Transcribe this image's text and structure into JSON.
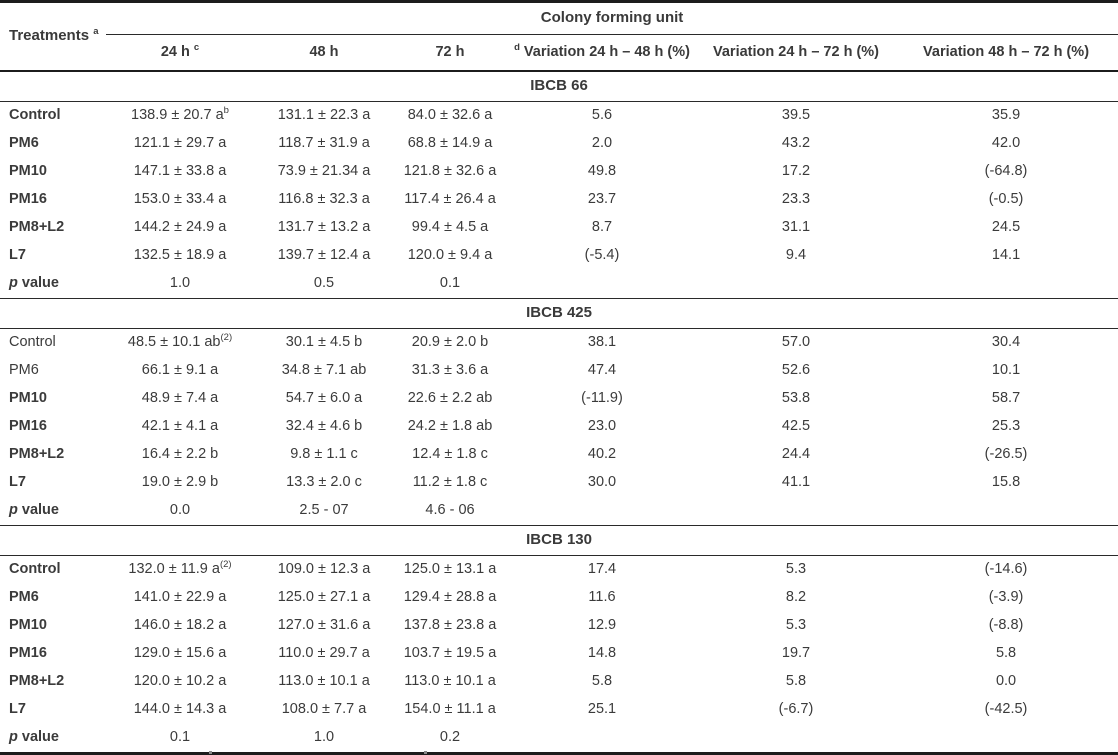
{
  "header": {
    "treatments": {
      "main": "Treatments",
      "sup": "a"
    },
    "group": "Colony forming unit",
    "cols": [
      {
        "pre": "",
        "main": "24 h",
        "sup": "c"
      },
      {
        "pre": "",
        "main": "48 h",
        "sup": ""
      },
      {
        "pre": "",
        "main": "72 h",
        "sup": ""
      },
      {
        "pre": "d",
        "main": "Variation 24 h – 48 h (%)",
        "sup": ""
      },
      {
        "pre": "",
        "main": "Variation 24 h – 72 h (%)",
        "sup": ""
      },
      {
        "pre": "",
        "main": "Variation 48 h – 72 h (%)",
        "sup": ""
      }
    ]
  },
  "sections": [
    {
      "name": "IBCB 66",
      "rows": [
        {
          "label_i": "",
          "label": "Control",
          "bold": true,
          "cells": [
            {
              "m": "138.9 ± 20.7 a",
              "s": "b"
            },
            {
              "m": "131.1 ± 22.3 a",
              "s": ""
            },
            {
              "m": "84.0 ± 32.6 a",
              "s": ""
            },
            {
              "m": "5.6",
              "s": ""
            },
            {
              "m": "39.5",
              "s": ""
            },
            {
              "m": "35.9",
              "s": ""
            }
          ]
        },
        {
          "label_i": "",
          "label": "PM6",
          "bold": true,
          "cells": [
            {
              "m": "121.1 ± 29.7 a",
              "s": ""
            },
            {
              "m": "118.7 ± 31.9 a",
              "s": ""
            },
            {
              "m": "68.8 ± 14.9 a",
              "s": ""
            },
            {
              "m": "2.0",
              "s": ""
            },
            {
              "m": "43.2",
              "s": ""
            },
            {
              "m": "42.0",
              "s": ""
            }
          ]
        },
        {
          "label_i": "",
          "label": "PM10",
          "bold": true,
          "cells": [
            {
              "m": "147.1 ± 33.8 a",
              "s": ""
            },
            {
              "m": "73.9 ± 21.34 a",
              "s": ""
            },
            {
              "m": "121.8 ± 32.6 a",
              "s": ""
            },
            {
              "m": "49.8",
              "s": ""
            },
            {
              "m": "17.2",
              "s": ""
            },
            {
              "m": "(-64.8)",
              "s": ""
            }
          ]
        },
        {
          "label_i": "",
          "label": "PM16",
          "bold": true,
          "cells": [
            {
              "m": "153.0 ± 33.4 a",
              "s": ""
            },
            {
              "m": "116.8 ± 32.3 a",
              "s": ""
            },
            {
              "m": "117.4 ± 26.4 a",
              "s": ""
            },
            {
              "m": "23.7",
              "s": ""
            },
            {
              "m": "23.3",
              "s": ""
            },
            {
              "m": "(-0.5)",
              "s": ""
            }
          ]
        },
        {
          "label_i": "",
          "label": "PM8+L2",
          "bold": true,
          "cells": [
            {
              "m": "144.2 ± 24.9 a",
              "s": ""
            },
            {
              "m": "131.7 ± 13.2 a",
              "s": ""
            },
            {
              "m": "99.4 ± 4.5 a",
              "s": ""
            },
            {
              "m": "8.7",
              "s": ""
            },
            {
              "m": "31.1",
              "s": ""
            },
            {
              "m": "24.5",
              "s": ""
            }
          ]
        },
        {
          "label_i": "",
          "label": "L7",
          "bold": true,
          "cells": [
            {
              "m": "132.5 ± 18.9 a",
              "s": ""
            },
            {
              "m": "139.7 ± 12.4 a",
              "s": ""
            },
            {
              "m": "120.0 ± 9.4 a",
              "s": ""
            },
            {
              "m": "(-5.4)",
              "s": ""
            },
            {
              "m": "9.4",
              "s": ""
            },
            {
              "m": "14.1",
              "s": ""
            }
          ]
        },
        {
          "label_i": "p",
          "label": " value",
          "bold": true,
          "cells": [
            {
              "m": "1.0",
              "s": ""
            },
            {
              "m": "0.5",
              "s": ""
            },
            {
              "m": "0.1",
              "s": ""
            },
            {
              "m": "",
              "s": ""
            },
            {
              "m": "",
              "s": ""
            },
            {
              "m": "",
              "s": ""
            }
          ]
        }
      ]
    },
    {
      "name": "IBCB 425",
      "rows": [
        {
          "label_i": "",
          "label": "Control",
          "bold": false,
          "cells": [
            {
              "m": "48.5 ± 10.1 ab",
              "s": "(2)"
            },
            {
              "m": "30.1 ± 4.5 b",
              "s": ""
            },
            {
              "m": "20.9 ± 2.0 b",
              "s": ""
            },
            {
              "m": "38.1",
              "s": ""
            },
            {
              "m": "57.0",
              "s": ""
            },
            {
              "m": "30.4",
              "s": ""
            }
          ]
        },
        {
          "label_i": "",
          "label": "PM6",
          "bold": false,
          "cells": [
            {
              "m": "66.1 ± 9.1 a",
              "s": ""
            },
            {
              "m": "34.8 ± 7.1 ab",
              "s": ""
            },
            {
              "m": "31.3 ± 3.6 a",
              "s": ""
            },
            {
              "m": "47.4",
              "s": ""
            },
            {
              "m": "52.6",
              "s": ""
            },
            {
              "m": "10.1",
              "s": ""
            }
          ]
        },
        {
          "label_i": "",
          "label": "PM10",
          "bold": true,
          "cells": [
            {
              "m": "48.9 ± 7.4 a",
              "s": ""
            },
            {
              "m": "54.7 ± 6.0 a",
              "s": ""
            },
            {
              "m": "22.6 ± 2.2 ab",
              "s": ""
            },
            {
              "m": "(-11.9)",
              "s": ""
            },
            {
              "m": "53.8",
              "s": ""
            },
            {
              "m": "58.7",
              "s": ""
            }
          ]
        },
        {
          "label_i": "",
          "label": "PM16",
          "bold": true,
          "cells": [
            {
              "m": "42.1 ± 4.1 a",
              "s": ""
            },
            {
              "m": "32.4 ± 4.6 b",
              "s": ""
            },
            {
              "m": "24.2 ± 1.8 ab",
              "s": ""
            },
            {
              "m": "23.0",
              "s": ""
            },
            {
              "m": "42.5",
              "s": ""
            },
            {
              "m": "25.3",
              "s": ""
            }
          ]
        },
        {
          "label_i": "",
          "label": "PM8+L2",
          "bold": true,
          "cells": [
            {
              "m": "16.4 ± 2.2 b",
              "s": ""
            },
            {
              "m": "9.8 ± 1.1 c",
              "s": ""
            },
            {
              "m": "12.4 ± 1.8 c",
              "s": ""
            },
            {
              "m": "40.2",
              "s": ""
            },
            {
              "m": "24.4",
              "s": ""
            },
            {
              "m": "(-26.5)",
              "s": ""
            }
          ]
        },
        {
          "label_i": "",
          "label": "L7",
          "bold": true,
          "cells": [
            {
              "m": "19.0 ± 2.9 b",
              "s": ""
            },
            {
              "m": "13.3 ± 2.0 c",
              "s": ""
            },
            {
              "m": "11.2 ± 1.8 c",
              "s": ""
            },
            {
              "m": "30.0",
              "s": ""
            },
            {
              "m": "41.1",
              "s": ""
            },
            {
              "m": "15.8",
              "s": ""
            }
          ]
        },
        {
          "label_i": "p",
          "label": " value",
          "bold": true,
          "cells": [
            {
              "m": "0.0",
              "s": ""
            },
            {
              "m": "2.5 - 07",
              "s": ""
            },
            {
              "m": "4.6 - 06",
              "s": ""
            },
            {
              "m": "",
              "s": ""
            },
            {
              "m": "",
              "s": ""
            },
            {
              "m": "",
              "s": ""
            }
          ]
        }
      ]
    },
    {
      "name": "IBCB 130",
      "rows": [
        {
          "label_i": "",
          "label": "Control",
          "bold": true,
          "cells": [
            {
              "m": "132.0 ± 11.9 a",
              "s": "(2)"
            },
            {
              "m": "109.0 ± 12.3 a",
              "s": ""
            },
            {
              "m": "125.0 ± 13.1 a",
              "s": ""
            },
            {
              "m": "17.4",
              "s": ""
            },
            {
              "m": "5.3",
              "s": ""
            },
            {
              "m": "(-14.6)",
              "s": ""
            }
          ]
        },
        {
          "label_i": "",
          "label": "PM6",
          "bold": true,
          "cells": [
            {
              "m": "141.0 ± 22.9 a",
              "s": ""
            },
            {
              "m": "125.0 ± 27.1 a",
              "s": ""
            },
            {
              "m": "129.4 ± 28.8 a",
              "s": ""
            },
            {
              "m": "11.6",
              "s": ""
            },
            {
              "m": "8.2",
              "s": ""
            },
            {
              "m": "(-3.9)",
              "s": ""
            }
          ]
        },
        {
          "label_i": "",
          "label": "PM10",
          "bold": true,
          "cells": [
            {
              "m": "146.0 ± 18.2 a",
              "s": ""
            },
            {
              "m": "127.0 ± 31.6 a",
              "s": ""
            },
            {
              "m": "137.8 ± 23.8 a",
              "s": ""
            },
            {
              "m": "12.9",
              "s": ""
            },
            {
              "m": "5.3",
              "s": ""
            },
            {
              "m": "(-8.8)",
              "s": ""
            }
          ]
        },
        {
          "label_i": "",
          "label": "PM16",
          "bold": true,
          "cells": [
            {
              "m": "129.0 ± 15.6 a",
              "s": ""
            },
            {
              "m": "110.0 ± 29.7 a",
              "s": ""
            },
            {
              "m": "103.7 ± 19.5 a",
              "s": ""
            },
            {
              "m": "14.8",
              "s": ""
            },
            {
              "m": "19.7",
              "s": ""
            },
            {
              "m": "5.8",
              "s": ""
            }
          ]
        },
        {
          "label_i": "",
          "label": "PM8+L2",
          "bold": true,
          "cells": [
            {
              "m": "120.0 ± 10.2 a",
              "s": ""
            },
            {
              "m": "113.0 ± 10.1 a",
              "s": ""
            },
            {
              "m": "113.0 ± 10.1 a",
              "s": ""
            },
            {
              "m": "5.8",
              "s": ""
            },
            {
              "m": "5.8",
              "s": ""
            },
            {
              "m": "0.0",
              "s": ""
            }
          ]
        },
        {
          "label_i": "",
          "label": "L7",
          "bold": true,
          "cells": [
            {
              "m": "144.0 ± 14.3 a",
              "s": ""
            },
            {
              "m": "108.0 ± 7.7 a",
              "s": ""
            },
            {
              "m": "154.0 ± 11.1 a",
              "s": ""
            },
            {
              "m": "25.1",
              "s": ""
            },
            {
              "m": "(-6.7)",
              "s": ""
            },
            {
              "m": "(-42.5)",
              "s": ""
            }
          ]
        },
        {
          "label_i": "p",
          "label": " value",
          "bold": true,
          "cells": [
            {
              "m": "0.1",
              "s": ""
            },
            {
              "m": "1.0",
              "s": ""
            },
            {
              "m": "0.2",
              "s": ""
            },
            {
              "m": "",
              "s": ""
            },
            {
              "m": "",
              "s": ""
            },
            {
              "m": "",
              "s": ""
            }
          ]
        }
      ]
    }
  ],
  "colors": {
    "text": "#3b3b3b",
    "rule": "#1c1c1c",
    "background": "#ffffff"
  }
}
